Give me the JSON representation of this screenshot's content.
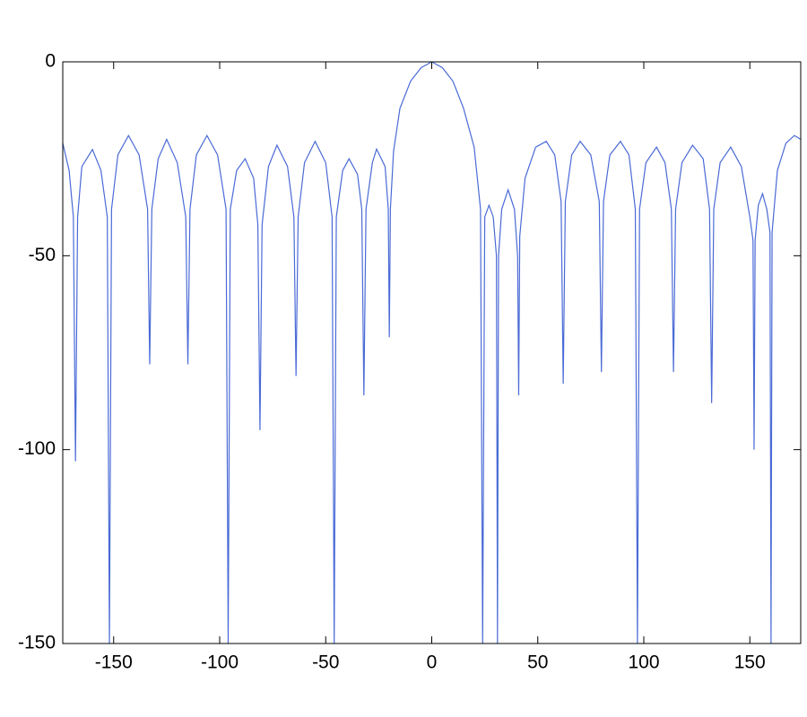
{
  "chart_data": {
    "type": "line",
    "x": [
      -174,
      -171,
      -169,
      -168,
      -167,
      -165,
      -160,
      -156,
      -153,
      -152,
      -151,
      -148,
      -143,
      -138,
      -134,
      -133,
      -132,
      -129,
      -125,
      -120,
      -116,
      -115,
      -114,
      -111,
      -106,
      -101,
      -97,
      -96,
      -95,
      -92,
      -88,
      -84,
      -82,
      -81,
      -80,
      -77,
      -73,
      -68,
      -65,
      -64,
      -63,
      -60,
      -55,
      -50,
      -47,
      -46,
      -45,
      -42,
      -39,
      -35,
      -33,
      -32,
      -31,
      -28,
      -26,
      -22,
      -20.5,
      -20,
      -19.5,
      -18,
      -15,
      -10,
      -5,
      0,
      5,
      10,
      15,
      20,
      23,
      24,
      25,
      27,
      29,
      30.5,
      31,
      31.5,
      33,
      36,
      39,
      40.5,
      41,
      41.5,
      44,
      49,
      54,
      58,
      61,
      62,
      63,
      66,
      70,
      75,
      79,
      80,
      81,
      84,
      89,
      93,
      96,
      97,
      98,
      101,
      106,
      110,
      113,
      114,
      115,
      118,
      123,
      128,
      131,
      132,
      133,
      136,
      141,
      146,
      150,
      151.5,
      152,
      152.5,
      154,
      156,
      158,
      159.5,
      160,
      160.5,
      163,
      167,
      171,
      174
    ],
    "series": [
      {
        "color": "#4a6ad6",
        "values": [
          -21,
          -28,
          -40,
          -103,
          -40,
          -27,
          -22.6,
          -28,
          -40,
          -150,
          -38,
          -24,
          -19,
          -24,
          -38,
          -78,
          -38,
          -25,
          -20,
          -26,
          -40,
          -78,
          -38,
          -24,
          -19,
          -24,
          -38,
          -150,
          -38,
          -28,
          -25,
          -30,
          -42,
          -95,
          -42,
          -27,
          -21.5,
          -27,
          -40,
          -81,
          -40,
          -26,
          -20.5,
          -26,
          -40,
          -150,
          -40,
          -28,
          -25,
          -29,
          -38,
          -86,
          -38,
          -26,
          -22.5,
          -27,
          -38,
          -71,
          -38,
          -23,
          -12,
          -5,
          -1.5,
          0,
          -1.5,
          -5,
          -12,
          -22,
          -38,
          -150,
          -40,
          -37,
          -40,
          -50,
          -150,
          -50,
          -38,
          -33,
          -38,
          -50,
          -86,
          -45,
          -30,
          -22,
          -20.5,
          -24,
          -36,
          -83,
          -36,
          -24,
          -20.5,
          -24,
          -36,
          -80,
          -36,
          -24,
          -20.5,
          -24,
          -38,
          -150,
          -38,
          -26,
          -22,
          -26,
          -38,
          -80,
          -38,
          -26,
          -21.5,
          -25,
          -38,
          -88,
          -38,
          -26,
          -22,
          -27,
          -40,
          -46,
          -100,
          -46,
          -37,
          -34,
          -38,
          -44,
          -150,
          -44,
          -28,
          -21,
          -19,
          -20
        ]
      }
    ],
    "xlim": [
      -174,
      174
    ],
    "ylim": [
      -150,
      0
    ],
    "xticks": [
      -150,
      -100,
      -50,
      0,
      50,
      100,
      150
    ],
    "yticks": [
      -150,
      -100,
      -50,
      0
    ]
  }
}
